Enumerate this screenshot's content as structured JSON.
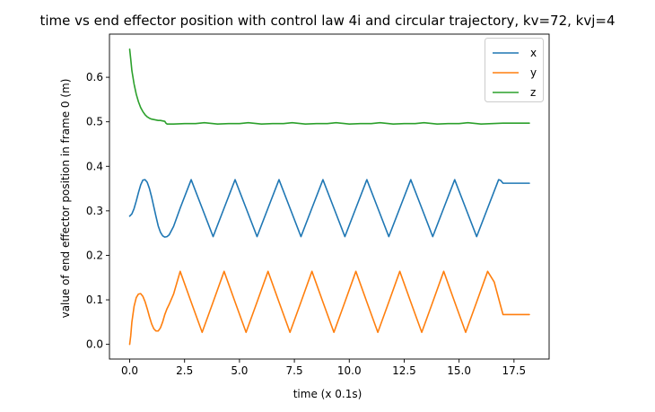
{
  "chart_data": {
    "type": "line",
    "title": "time vs end effector position with control law 4i and circular trajectory, kv=72, kvj=4",
    "xlabel": "time (x 0.1s)",
    "ylabel": "value of end effector position in frame 0 (m)",
    "xlim": [
      -0.92,
      19.1
    ],
    "ylim": [
      -0.033,
      0.697
    ],
    "xticks": [
      0.0,
      2.5,
      5.0,
      7.5,
      10.0,
      12.5,
      15.0,
      17.5
    ],
    "xtick_labels": [
      "0.0",
      "2.5",
      "5.0",
      "7.5",
      "10.0",
      "12.5",
      "15.0",
      "17.5"
    ],
    "yticks": [
      0.0,
      0.1,
      0.2,
      0.3,
      0.4,
      0.5,
      0.6
    ],
    "ytick_labels": [
      "0.0",
      "0.1",
      "0.2",
      "0.3",
      "0.4",
      "0.5",
      "0.6"
    ],
    "grid": false,
    "legend_position": "top-right",
    "series": [
      {
        "name": "x",
        "color": "#1f77b4",
        "x": [
          0.0,
          0.1,
          0.2,
          0.3,
          0.4,
          0.5,
          0.6,
          0.7,
          0.8,
          0.9,
          1.0,
          1.1,
          1.2,
          1.3,
          1.4,
          1.5,
          1.6,
          1.7,
          1.8,
          2.0,
          2.3,
          2.8,
          3.3,
          3.8,
          4.3,
          4.8,
          5.3,
          5.8,
          6.3,
          6.8,
          7.3,
          7.8,
          8.3,
          8.8,
          9.3,
          9.8,
          10.3,
          10.8,
          11.3,
          11.8,
          12.3,
          12.8,
          13.3,
          13.8,
          14.3,
          14.8,
          15.3,
          15.8,
          16.3,
          16.8,
          16.9,
          17.0,
          17.2,
          18.2
        ],
        "values": [
          0.288,
          0.293,
          0.305,
          0.322,
          0.341,
          0.358,
          0.369,
          0.37,
          0.364,
          0.35,
          0.331,
          0.309,
          0.287,
          0.266,
          0.252,
          0.244,
          0.241,
          0.242,
          0.246,
          0.265,
          0.306,
          0.37,
          0.306,
          0.242,
          0.306,
          0.37,
          0.306,
          0.242,
          0.306,
          0.37,
          0.306,
          0.242,
          0.306,
          0.37,
          0.306,
          0.242,
          0.306,
          0.37,
          0.306,
          0.242,
          0.306,
          0.37,
          0.306,
          0.242,
          0.306,
          0.37,
          0.306,
          0.242,
          0.306,
          0.37,
          0.368,
          0.362,
          0.362,
          0.362
        ]
      },
      {
        "name": "y",
        "color": "#ff7f0e",
        "x": [
          0.0,
          0.05,
          0.1,
          0.2,
          0.3,
          0.4,
          0.5,
          0.6,
          0.7,
          0.8,
          0.9,
          1.0,
          1.1,
          1.2,
          1.3,
          1.4,
          1.5,
          1.6,
          1.7,
          1.8,
          2.0,
          2.3,
          2.8,
          3.3,
          3.8,
          4.3,
          4.8,
          5.3,
          5.8,
          6.3,
          6.8,
          7.3,
          7.8,
          8.3,
          8.8,
          9.3,
          9.8,
          10.3,
          10.8,
          11.3,
          11.8,
          12.3,
          12.8,
          13.3,
          13.8,
          14.3,
          14.8,
          15.3,
          15.8,
          16.3,
          16.6,
          16.9,
          17.0,
          17.2,
          18.2
        ],
        "values": [
          0.0,
          0.02,
          0.05,
          0.085,
          0.105,
          0.113,
          0.114,
          0.108,
          0.096,
          0.08,
          0.062,
          0.046,
          0.035,
          0.03,
          0.03,
          0.037,
          0.05,
          0.067,
          0.08,
          0.09,
          0.113,
          0.164,
          0.095,
          0.027,
          0.095,
          0.164,
          0.095,
          0.027,
          0.095,
          0.164,
          0.095,
          0.027,
          0.095,
          0.164,
          0.095,
          0.027,
          0.095,
          0.164,
          0.095,
          0.027,
          0.095,
          0.164,
          0.095,
          0.027,
          0.095,
          0.164,
          0.095,
          0.027,
          0.095,
          0.164,
          0.14,
          0.085,
          0.067,
          0.067,
          0.067
        ]
      },
      {
        "name": "z",
        "color": "#2ca02c",
        "x": [
          0.0,
          0.05,
          0.1,
          0.2,
          0.3,
          0.4,
          0.5,
          0.6,
          0.7,
          0.8,
          0.9,
          1.0,
          1.1,
          1.2,
          1.3,
          1.4,
          1.5,
          1.6,
          1.65,
          1.7,
          1.8,
          2.0,
          2.5,
          3.0,
          3.4,
          4.0,
          4.5,
          5.0,
          5.4,
          6.0,
          6.5,
          7.0,
          7.4,
          8.0,
          8.5,
          9.0,
          9.4,
          10.0,
          10.5,
          11.0,
          11.4,
          12.0,
          12.5,
          13.0,
          13.4,
          14.0,
          14.5,
          15.0,
          15.4,
          16.0,
          16.5,
          17.0,
          18.2
        ],
        "values": [
          0.663,
          0.64,
          0.615,
          0.585,
          0.562,
          0.545,
          0.532,
          0.523,
          0.516,
          0.511,
          0.508,
          0.506,
          0.505,
          0.504,
          0.503,
          0.503,
          0.502,
          0.501,
          0.497,
          0.495,
          0.495,
          0.495,
          0.496,
          0.496,
          0.498,
          0.495,
          0.496,
          0.496,
          0.498,
          0.495,
          0.496,
          0.496,
          0.498,
          0.495,
          0.496,
          0.496,
          0.498,
          0.495,
          0.496,
          0.496,
          0.498,
          0.495,
          0.496,
          0.496,
          0.498,
          0.495,
          0.496,
          0.496,
          0.498,
          0.495,
          0.496,
          0.497,
          0.497
        ]
      }
    ]
  }
}
